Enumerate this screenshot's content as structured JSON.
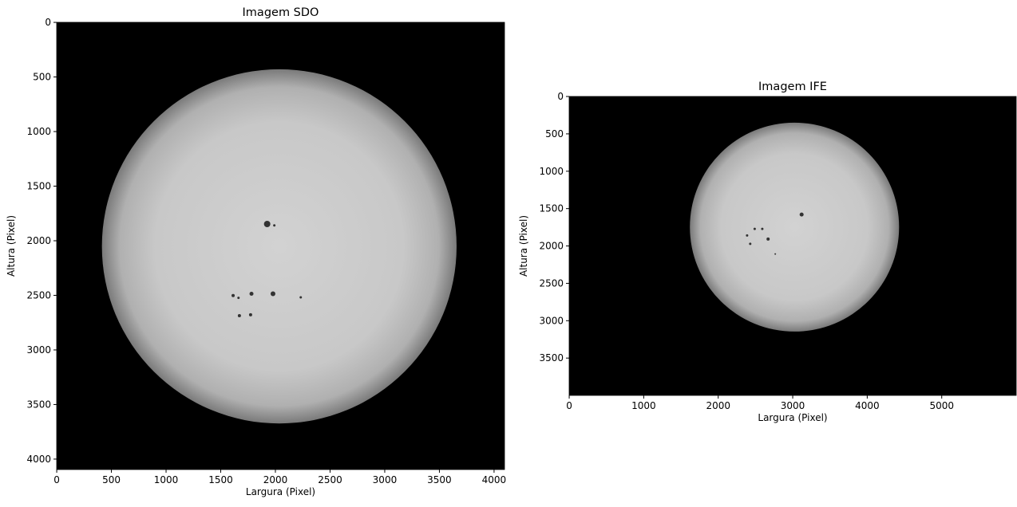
{
  "chart_data": [
    {
      "type": "image",
      "title": "Imagem SDO",
      "x_label": "Largura (Pixel)",
      "y_label": "Altura (Pixel)",
      "xlim": [
        -0.5,
        4095.5
      ],
      "ylim": [
        4095.5,
        -0.5
      ],
      "xticks": [
        0,
        500,
        1000,
        1500,
        2000,
        2500,
        3000,
        3500,
        4000
      ],
      "yticks": [
        0,
        500,
        1000,
        1500,
        2000,
        2500,
        3000,
        3500,
        4000
      ]
    },
    {
      "type": "image",
      "title": "Imagem IFE",
      "x_label": "Largura (Pixel)",
      "y_label": "Altura (Pixel)",
      "xlim": [
        -0.5,
        5999.5
      ],
      "ylim": [
        3999.5,
        -0.5
      ],
      "xticks": [
        0,
        1000,
        2000,
        3000,
        4000,
        5000
      ],
      "yticks": [
        0,
        500,
        1000,
        1500,
        2000,
        2500,
        3000,
        3500
      ]
    }
  ]
}
